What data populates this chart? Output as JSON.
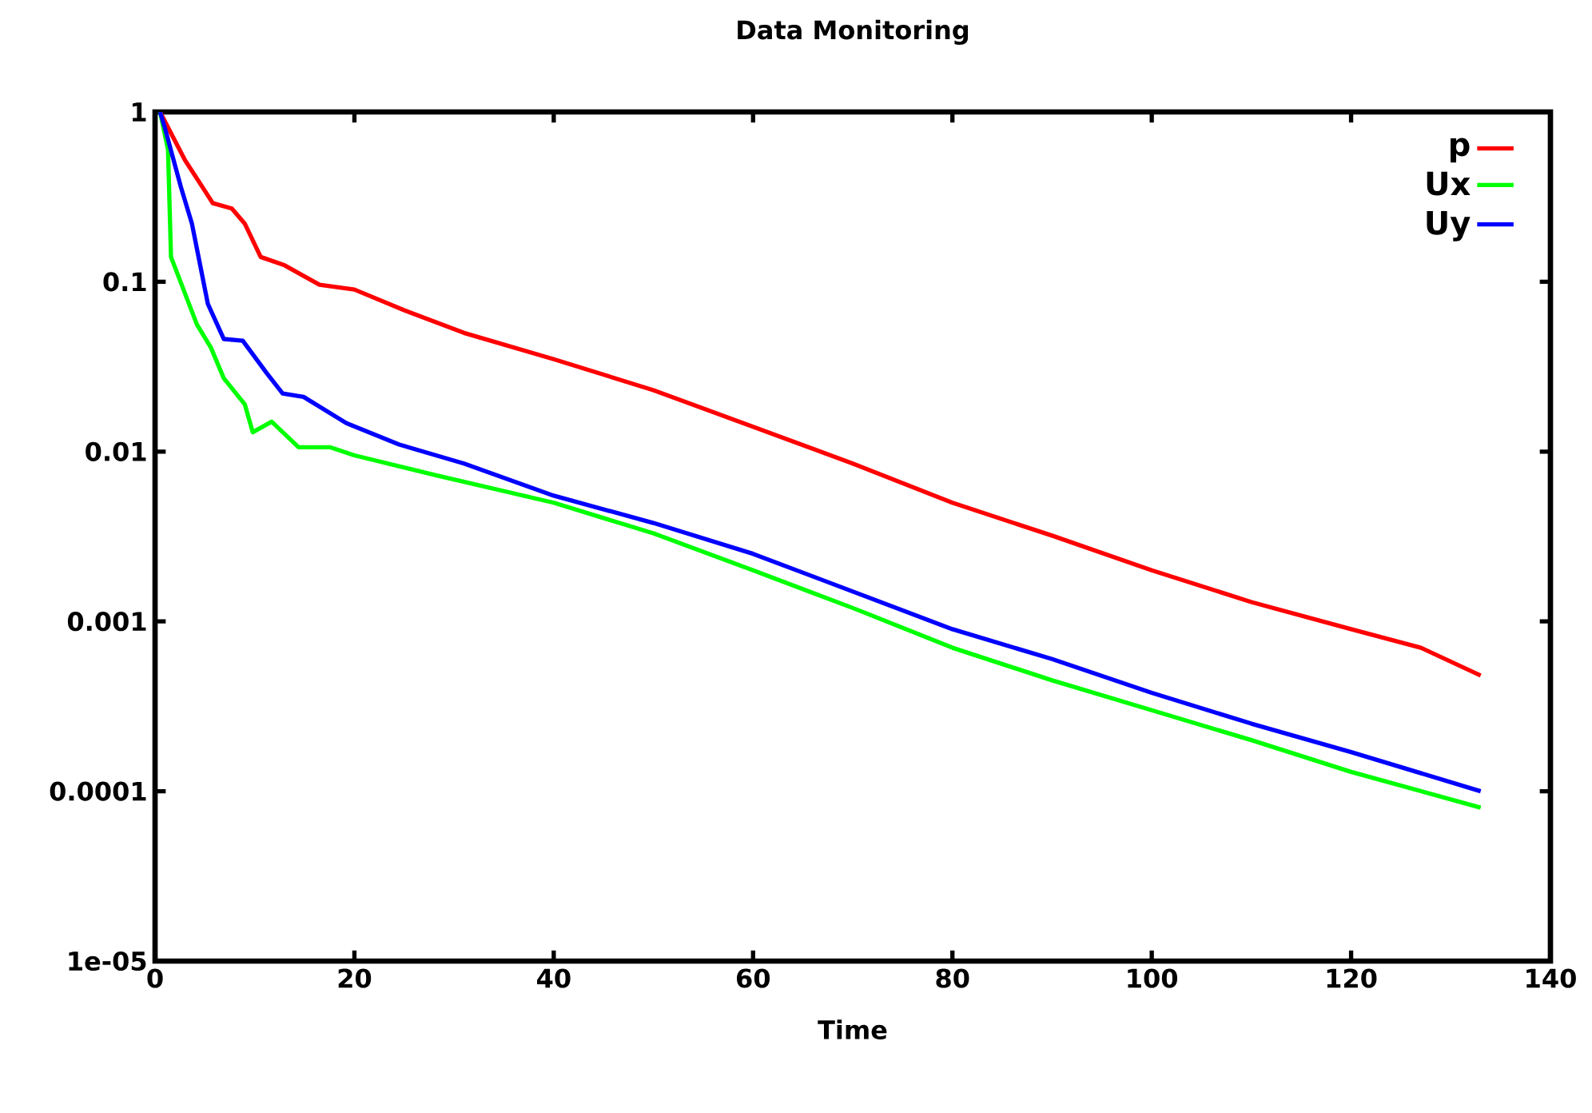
{
  "chart_data": {
    "type": "line",
    "title": "Data Monitoring",
    "xlabel": "Time",
    "log": "y",
    "grid": false,
    "legend": "top right",
    "line_style": "solid",
    "marker": "none",
    "xlim": [
      0,
      140
    ],
    "xticks": [
      0,
      20,
      40,
      60,
      80,
      100,
      120,
      140
    ],
    "ylim": [
      1e-05,
      1
    ],
    "yticks": [
      {
        "value": 1e-05,
        "label": "1e-05"
      },
      {
        "value": 0.0001,
        "label": "0.0001"
      },
      {
        "value": 0.001,
        "label": "0.001"
      },
      {
        "value": 0.01,
        "label": "0.01"
      },
      {
        "value": 0.1,
        "label": "0.1"
      },
      {
        "value": 1,
        "label": "1"
      }
    ],
    "series": [
      {
        "name": "p",
        "color": "#ff0000",
        "x": [
          0.5,
          3,
          5.8,
          7.7,
          9,
          10.6,
          13,
          16.5,
          20,
          25,
          31,
          40,
          50,
          60,
          70,
          80,
          90,
          100,
          110,
          120,
          127,
          133
        ],
        "values": [
          1,
          0.52,
          0.29,
          0.27,
          0.22,
          0.14,
          0.125,
          0.096,
          0.09,
          0.068,
          0.05,
          0.035,
          0.023,
          0.014,
          0.0085,
          0.005,
          0.0032,
          0.002,
          0.0013,
          0.0009,
          0.0007,
          0.00048
        ]
      },
      {
        "name": "Ux",
        "color": "#00ff00",
        "x": [
          0.5,
          1.3,
          1.6,
          4.2,
          5.6,
          6.9,
          9,
          9.8,
          11.7,
          14.4,
          17.6,
          20,
          28,
          40,
          50,
          60,
          70,
          80,
          90,
          100,
          110,
          120,
          133
        ],
        "values": [
          1,
          0.6,
          0.14,
          0.056,
          0.041,
          0.027,
          0.019,
          0.013,
          0.015,
          0.0106,
          0.0106,
          0.0095,
          0.0073,
          0.005,
          0.0033,
          0.002,
          0.0012,
          0.0007,
          0.00045,
          0.0003,
          0.0002,
          0.00013,
          8e-05
        ]
      },
      {
        "name": "Uy",
        "color": "#0000ff",
        "x": [
          0.5,
          1,
          2.6,
          3.7,
          5.3,
          6.9,
          8.8,
          11.2,
          12.8,
          14.9,
          19.2,
          24.5,
          31,
          40,
          50,
          60,
          70,
          80,
          90,
          100,
          110,
          120,
          133
        ],
        "values": [
          1,
          0.8,
          0.36,
          0.22,
          0.074,
          0.046,
          0.045,
          0.029,
          0.022,
          0.021,
          0.0147,
          0.011,
          0.0085,
          0.0055,
          0.0038,
          0.0025,
          0.0015,
          0.0009,
          0.0006,
          0.00038,
          0.00025,
          0.00017,
          0.0001
        ]
      }
    ]
  }
}
